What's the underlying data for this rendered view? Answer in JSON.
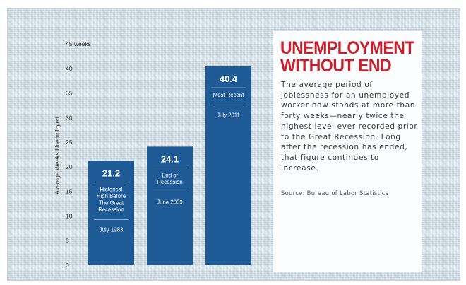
{
  "headline": {
    "line1": "UNEMPLOYMENT",
    "line2": "WITHOUT END"
  },
  "description": "The average period of joblessness for an unemployed worker now stands at more than forty weeks—nearly twice the highest level ever recorded prior to the Great Recession. Long after the recession has ended, that figure continues to increase.",
  "source": "Source: Bureau of Labor Statistics",
  "colors": {
    "bar": "#1d5a96",
    "headline": "#c8202c",
    "bar_text": "#ffffff",
    "axis_text": "#333333"
  },
  "chart_data": {
    "type": "bar",
    "ylabel": "Average Weeks Unemployed",
    "ylim": [
      0,
      45
    ],
    "y_ticks": [
      "0",
      "5",
      "10",
      "15",
      "20",
      "25",
      "30",
      "35",
      "40",
      "45 weeks"
    ],
    "grid": false,
    "bars": [
      {
        "value": 21.2,
        "value_label": "21.2",
        "description": [
          "Historical",
          "High Before",
          "The Great",
          "Recession"
        ],
        "date": "July 1983"
      },
      {
        "value": 24.1,
        "value_label": "24.1",
        "description": [
          "End of",
          "Recession"
        ],
        "date": "June 2009"
      },
      {
        "value": 40.4,
        "value_label": "40.4",
        "description": [
          "Most Recent"
        ],
        "date": "July 2011"
      }
    ]
  }
}
